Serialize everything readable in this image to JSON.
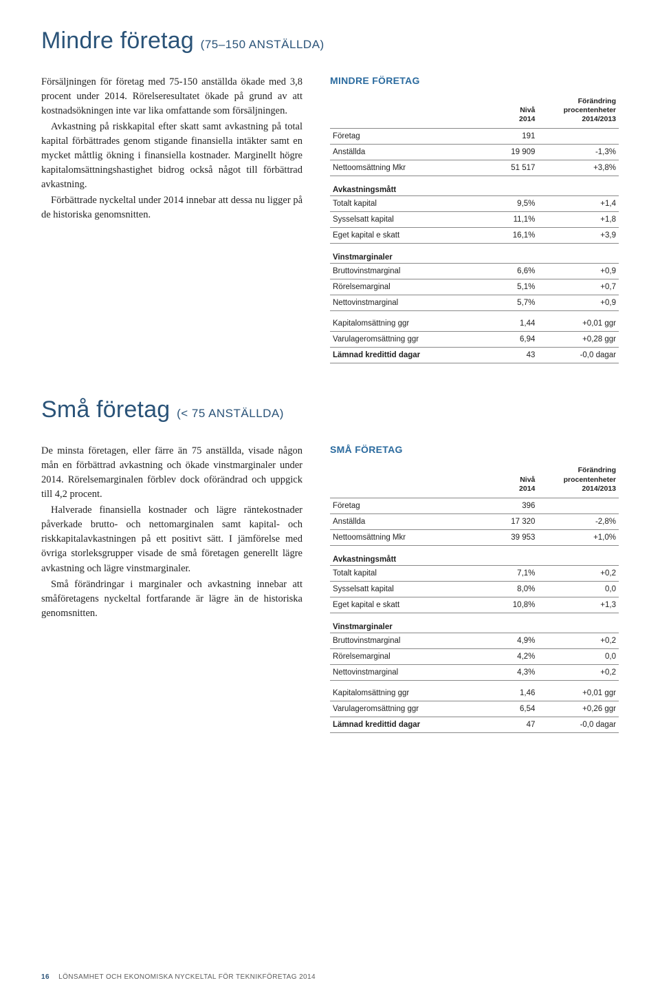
{
  "colors": {
    "heading": "#2a5378",
    "table_title": "#2a6a9e",
    "text": "#222222",
    "rule": "#888888",
    "footer": "#5b5b5b",
    "background": "#ffffff"
  },
  "typography": {
    "heading_family": "Helvetica Neue Light",
    "heading_size_pt": 26,
    "heading_sub_size_pt": 13,
    "body_family": "Minion Pro / Georgia serif",
    "body_size_pt": 11,
    "table_family": "Verdana",
    "table_size_pt": 9,
    "footer_size_pt": 8
  },
  "section1": {
    "title_main": "Mindre företag ",
    "title_sub": "(75–150 ANSTÄLLDA)",
    "paragraphs": [
      "Försäljningen för företag med 75-150 anställda ökade med 3,8 procent under 2014. Rörelseresultatet ökade på grund av att kostnadsökningen inte var lika omfattande som försäljningen.",
      "Avkastning på riskkapital efter skatt samt avkastning på total kapital förbättrades genom stigande finansiella intäkter samt en mycket måttlig ökning i finansiella kostnader. Marginellt högre kapitalomsättningshastighet bidrog också något till förbättrad avkastning.",
      "Förbättrade nyckeltal under 2014 innebar att dessa nu ligger på de historiska genomsnitten."
    ],
    "table": {
      "title": "MINDRE FÖRETAG",
      "col_headers": [
        "",
        "Nivå\n2014",
        "Förändring\nprocentenheter\n2014/2013"
      ],
      "col_align": [
        "left",
        "right",
        "right"
      ],
      "col_widths_pct": [
        52,
        20,
        28
      ],
      "rows": [
        {
          "cells": [
            "Företag",
            "191",
            ""
          ],
          "rule_after": true
        },
        {
          "cells": [
            "Anställda",
            "19 909",
            "-1,3%"
          ],
          "rule_after": true
        },
        {
          "cells": [
            "Nettoomsättning Mkr",
            "51 517",
            "+3,8%"
          ],
          "rule_after": true
        },
        {
          "category": "Avkastningsmått"
        },
        {
          "cells": [
            "Totalt kapital",
            "9,5%",
            "+1,4"
          ],
          "rule_after": true
        },
        {
          "cells": [
            "Sysselsatt kapital",
            "11,1%",
            "+1,8"
          ],
          "rule_after": true
        },
        {
          "cells": [
            "Eget kapital e skatt",
            "16,1%",
            "+3,9"
          ],
          "rule_after": true
        },
        {
          "category": "Vinstmarginaler"
        },
        {
          "cells": [
            "Bruttovinstmarginal",
            "6,6%",
            "+0,9"
          ],
          "rule_after": true
        },
        {
          "cells": [
            "Rörelsemarginal",
            "5,1%",
            "+0,7"
          ],
          "rule_after": true
        },
        {
          "cells": [
            "Nettovinstmarginal",
            "5,7%",
            "+0,9"
          ],
          "rule_after": true
        },
        {
          "cells": [
            "Kapitalomsättning ggr",
            "1,44",
            "+0,01 ggr"
          ],
          "rule_after": true,
          "sep_top": true
        },
        {
          "cells": [
            "Varulageromsättning ggr",
            "6,94",
            "+0,28 ggr"
          ],
          "rule_after": true
        },
        {
          "cells": [
            "Lämnad kredittid dagar",
            "43",
            "-0,0 dagar"
          ],
          "rule_after": true,
          "bold_label": true
        }
      ]
    }
  },
  "section2": {
    "title_main": "Små företag ",
    "title_sub": "(< 75 ANSTÄLLDA)",
    "paragraphs": [
      "De minsta företagen, eller färre än 75 anställda, visade någon mån en förbättrad avkastning och ökade vinstmarginaler under 2014. Rörelsemarginalen förblev dock oförändrad och uppgick till 4,2 procent.",
      "Halverade finansiella kostnader och lägre räntekostnader påverkade brutto- och nettomarginalen samt kapital- och riskkapitalavkastningen på ett positivt sätt. I jämförelse med övriga storleksgrupper visade de små företagen generellt lägre avkastning och lägre vinstmarginaler.",
      "Små förändringar i marginaler och avkastning innebar att småföretagens nyckeltal fortfarande är lägre än de historiska genomsnitten."
    ],
    "table": {
      "title": "SMÅ FÖRETAG",
      "col_headers": [
        "",
        "Nivå\n2014",
        "Förändring\nprocentenheter\n2014/2013"
      ],
      "col_align": [
        "left",
        "right",
        "right"
      ],
      "col_widths_pct": [
        52,
        20,
        28
      ],
      "rows": [
        {
          "cells": [
            "Företag",
            "396",
            ""
          ],
          "rule_after": true
        },
        {
          "cells": [
            "Anställda",
            "17 320",
            "-2,8%"
          ],
          "rule_after": true
        },
        {
          "cells": [
            "Nettoomsättning Mkr",
            "39 953",
            "+1,0%"
          ],
          "rule_after": true
        },
        {
          "category": "Avkastningsmått"
        },
        {
          "cells": [
            "Totalt kapital",
            "7,1%",
            "+0,2"
          ],
          "rule_after": true
        },
        {
          "cells": [
            "Sysselsatt kapital",
            "8,0%",
            "0,0"
          ],
          "rule_after": true
        },
        {
          "cells": [
            "Eget kapital e skatt",
            "10,8%",
            "+1,3"
          ],
          "rule_after": true
        },
        {
          "category": "Vinstmarginaler"
        },
        {
          "cells": [
            "Bruttovinstmarginal",
            "4,9%",
            "+0,2"
          ],
          "rule_after": true
        },
        {
          "cells": [
            "Rörelsemarginal",
            "4,2%",
            "0,0"
          ],
          "rule_after": true
        },
        {
          "cells": [
            "Nettovinstmarginal",
            "4,3%",
            "+0,2"
          ],
          "rule_after": true
        },
        {
          "cells": [
            "Kapitalomsättning ggr",
            "1,46",
            "+0,01 ggr"
          ],
          "rule_after": true,
          "sep_top": true
        },
        {
          "cells": [
            "Varulageromsättning ggr",
            "6,54",
            "+0,26 ggr"
          ],
          "rule_after": true
        },
        {
          "cells": [
            "Lämnad kredittid dagar",
            "47",
            "-0,0 dagar"
          ],
          "rule_after": true,
          "bold_label": true
        }
      ]
    }
  },
  "footer": {
    "page": "16",
    "text": "LÖNSAMHET OCH EKONOMISKA NYCKELTAL FÖR TEKNIKFÖRETAG 2014"
  }
}
